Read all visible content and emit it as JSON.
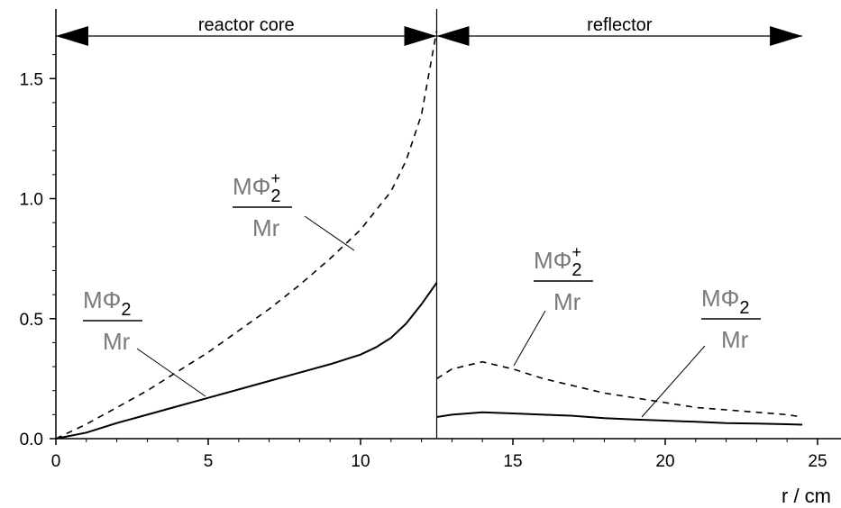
{
  "chart_data": {
    "type": "line",
    "xlabel": "r / cm",
    "ylabel": "",
    "xlim": [
      0,
      25
    ],
    "ylim": [
      0,
      1.7
    ],
    "x_ticks": [
      "0",
      "5",
      "10",
      "15",
      "20",
      "25"
    ],
    "y_ticks": [
      "0.0",
      "0.5",
      "1.0",
      "1.5"
    ],
    "interface_r": 12.5,
    "regions": [
      {
        "label": "reactor core",
        "from": 0,
        "to": 12.5
      },
      {
        "label": "reflector",
        "from": 12.5,
        "to": 24.5
      }
    ],
    "series": [
      {
        "style": "dashed",
        "segments": [
          {
            "x": [
              0,
              1,
              2,
              3,
              4,
              5,
              6,
              7,
              8,
              9,
              10,
              11,
              11.5,
              12,
              12.5
            ],
            "y": [
              0,
              0.06,
              0.13,
              0.2,
              0.28,
              0.36,
              0.45,
              0.54,
              0.64,
              0.75,
              0.87,
              1.03,
              1.16,
              1.35,
              1.7
            ]
          },
          {
            "x": [
              12.5,
              13,
              14,
              15,
              16,
              17,
              18,
              19,
              20,
              21,
              22,
              23,
              24,
              24.5
            ],
            "y": [
              0.25,
              0.29,
              0.32,
              0.29,
              0.25,
              0.22,
              0.19,
              0.17,
              0.15,
              0.13,
              0.12,
              0.11,
              0.1,
              0.09
            ]
          }
        ]
      },
      {
        "style": "solid",
        "segments": [
          {
            "x": [
              0,
              1,
              2,
              3,
              4,
              5,
              6,
              7,
              8,
              9,
              10,
              10.5,
              11,
              11.5,
              12,
              12.5
            ],
            "y": [
              0,
              0.025,
              0.065,
              0.1,
              0.135,
              0.17,
              0.205,
              0.24,
              0.275,
              0.31,
              0.35,
              0.38,
              0.42,
              0.48,
              0.56,
              0.65
            ]
          },
          {
            "x": [
              12.5,
              13,
              14,
              15,
              16,
              17,
              18,
              19,
              20,
              21,
              22,
              23,
              24,
              24.5
            ],
            "y": [
              0.09,
              0.1,
              0.11,
              0.105,
              0.1,
              0.095,
              0.085,
              0.08,
              0.075,
              0.07,
              0.065,
              0.063,
              0.06,
              0.058
            ]
          }
        ]
      }
    ],
    "annotations": [
      {
        "numerator": "MΦ",
        "sub": "2",
        "sup": "+",
        "denominator": "Mr",
        "style": "dashed-label"
      },
      {
        "numerator": "MΦ",
        "sub": "2",
        "sup": "",
        "denominator": "Mr",
        "style": "solid-label"
      },
      {
        "numerator": "MΦ",
        "sub": "2",
        "sup": "+",
        "denominator": "Mr",
        "style": "dashed-label"
      },
      {
        "numerator": "MΦ",
        "sub": "2",
        "sup": "",
        "denominator": "Mr",
        "style": "solid-label"
      }
    ]
  }
}
